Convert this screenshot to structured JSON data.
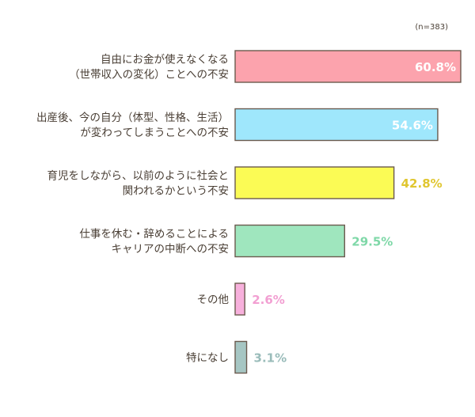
{
  "chart_data": {
    "type": "bar",
    "orientation": "horizontal",
    "note": "(n=383)",
    "xlim": [
      0,
      100
    ],
    "unit": "%",
    "grid": false,
    "categories": [
      {
        "lines": [
          "自由にお金が使えなくなる",
          "（世帯収入の変化）ことへの不安"
        ],
        "value": 60.8,
        "label": "60.8%",
        "color": "#fca3ad",
        "label_color": "#ffffff",
        "label_inside": true
      },
      {
        "lines": [
          "出産後、今の自分（体型、性格、生活）",
          "が変わってしまうことへの不安"
        ],
        "value": 54.6,
        "label": "54.6%",
        "color": "#9fe7fc",
        "label_color": "#ffffff",
        "label_inside": true
      },
      {
        "lines": [
          "育児をしながら、以前のように社会と",
          "関われるかという不安"
        ],
        "value": 42.8,
        "label": "42.8%",
        "color": "#fbfb55",
        "label_color": "#e0c630",
        "label_inside": false
      },
      {
        "lines": [
          "仕事を休む・辞めることによる",
          "キャリアの中断への不安"
        ],
        "value": 29.5,
        "label": "29.5%",
        "color": "#9fe6be",
        "label_color": "#7fd8a8",
        "label_inside": false
      },
      {
        "lines": [
          "その他"
        ],
        "value": 2.6,
        "label": "2.6%",
        "color": "#f7b0dc",
        "label_color": "#f29fd2",
        "label_inside": false
      },
      {
        "lines": [
          "特になし"
        ],
        "value": 3.1,
        "label": "3.1%",
        "color": "#a6c6c3",
        "label_color": "#9abcba",
        "label_inside": false
      }
    ]
  }
}
